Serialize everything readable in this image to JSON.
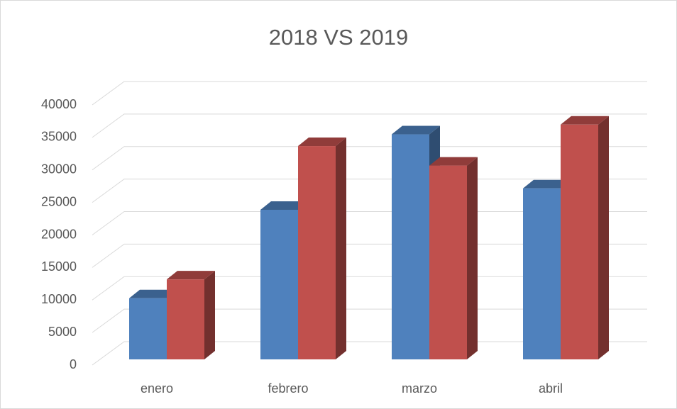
{
  "chart_data": {
    "type": "bar3d",
    "title": "2018 VS 2019",
    "categories": [
      "enero",
      "febrero",
      "marzo",
      "abril"
    ],
    "series": [
      {
        "color": "#4f81bd",
        "values": [
          9400,
          23000,
          34600,
          26300
        ]
      },
      {
        "color": "#c0504d",
        "values": [
          12300,
          32800,
          29800,
          36100
        ]
      }
    ],
    "ylim": [
      0,
      40000
    ],
    "yticks": [
      0,
      5000,
      10000,
      15000,
      20000,
      25000,
      30000,
      35000,
      40000
    ],
    "grid": true
  }
}
